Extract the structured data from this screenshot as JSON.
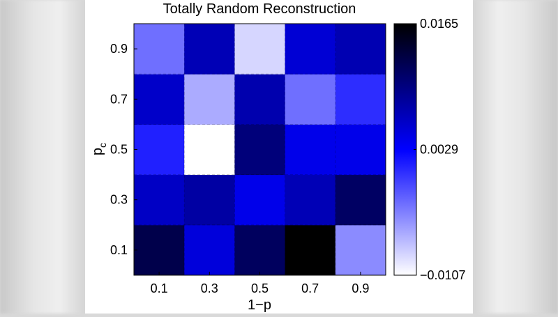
{
  "chart_data": {
    "type": "heatmap",
    "title": "Totally Random Reconstruction",
    "xlabel": "1−p",
    "ylabel": {
      "main": "p",
      "subscript": "c"
    },
    "x": [
      "0.1",
      "0.3",
      "0.5",
      "0.7",
      "0.9"
    ],
    "y": [
      "0.1",
      "0.3",
      "0.5",
      "0.7",
      "0.9"
    ],
    "values": [
      [
        0.0125,
        0.0048,
        0.0115,
        0.0165,
        -0.0045
      ],
      [
        0.006,
        0.0078,
        0.004,
        0.0068,
        0.0112
      ],
      [
        0.0012,
        -0.0107,
        0.01,
        0.004,
        0.004
      ],
      [
        0.0058,
        -0.0062,
        0.0072,
        -0.003,
        0.0005
      ],
      [
        -0.003,
        0.0068,
        -0.0085,
        0.0052,
        0.007
      ]
    ],
    "colorbar": {
      "min": -0.0107,
      "max": 0.0165,
      "tick_values": [
        0.0165,
        0.0029,
        -0.0107
      ],
      "tick_labels": [
        "0.0165",
        "0.0029",
        "−0.0107"
      ],
      "colormap": [
        "#ffffff",
        "#0000ff",
        "#000000"
      ]
    }
  }
}
